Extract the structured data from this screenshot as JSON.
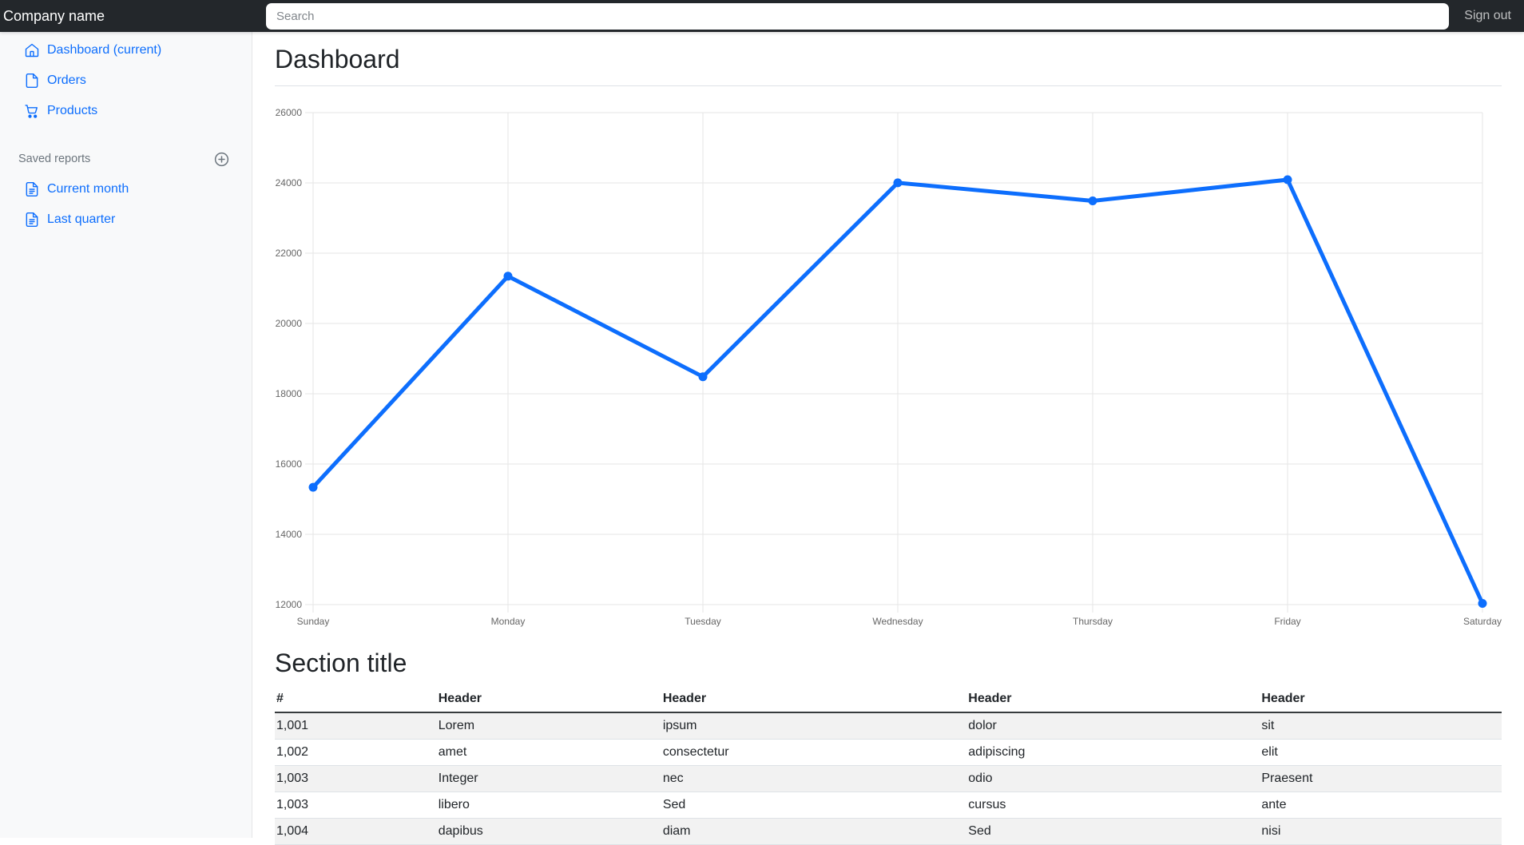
{
  "navbar": {
    "brand": "Company name",
    "search_placeholder": "Search",
    "sign_out": "Sign out"
  },
  "sidebar": {
    "items": [
      {
        "id": "dashboard",
        "label": "Dashboard (current)",
        "icon": "house-icon"
      },
      {
        "id": "orders",
        "label": "Orders",
        "icon": "file-icon"
      },
      {
        "id": "products",
        "label": "Products",
        "icon": "cart-icon"
      }
    ],
    "saved_reports": {
      "heading": "Saved reports",
      "add_icon": "plus-circle-icon",
      "items": [
        {
          "id": "current-month",
          "label": "Current month",
          "icon": "file-text-icon"
        },
        {
          "id": "last-quarter",
          "label": "Last quarter",
          "icon": "file-text-icon"
        }
      ]
    }
  },
  "main": {
    "title": "Dashboard",
    "section_title": "Section title"
  },
  "chart_data": {
    "type": "line",
    "categories": [
      "Sunday",
      "Monday",
      "Tuesday",
      "Wednesday",
      "Thursday",
      "Friday",
      "Saturday"
    ],
    "values": [
      15339,
      21345,
      18483,
      24003,
      23489,
      24092,
      12034
    ],
    "title": "",
    "xlabel": "",
    "ylabel": "",
    "ylim": [
      12000,
      26000
    ],
    "ytick_step": 2000,
    "grid": true,
    "legend": "none",
    "line_color": "#0d6efd",
    "line_width": 5,
    "point_radius": 5.5
  },
  "table": {
    "headers": [
      "#",
      "Header",
      "Header",
      "Header",
      "Header"
    ],
    "col_widths": [
      "13.2%",
      "18.3%",
      "24.9%",
      "23.9%",
      "19.7%"
    ],
    "rows": [
      [
        "1,001",
        "Lorem",
        "ipsum",
        "dolor",
        "sit"
      ],
      [
        "1,002",
        "amet",
        "consectetur",
        "adipiscing",
        "elit"
      ],
      [
        "1,003",
        "Integer",
        "nec",
        "odio",
        "Praesent"
      ],
      [
        "1,003",
        "libero",
        "Sed",
        "cursus",
        "ante"
      ],
      [
        "1,004",
        "dapibus",
        "diam",
        "Sed",
        "nisi"
      ]
    ]
  },
  "colors": {
    "accent": "#0d6efd",
    "navbar_bg": "#23272b",
    "sidebar_bg": "#f8f9fa",
    "muted": "#6c757d",
    "grid": "#e5e5e5",
    "tick_text": "#666666",
    "stripe": "#f2f2f2",
    "row_border": "#dee2e6",
    "header_border": "#373b3e"
  }
}
